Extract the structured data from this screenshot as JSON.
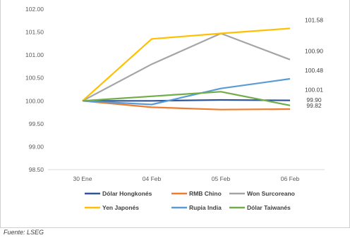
{
  "chart_data": {
    "type": "line",
    "categories": [
      "30 Ene",
      "04 Feb",
      "05 Feb",
      "06 Feb"
    ],
    "ylim": [
      98.5,
      102.0
    ],
    "yticks": [
      "98.50",
      "99.00",
      "99.50",
      "100.00",
      "100.50",
      "101.00",
      "101.50",
      "102.00"
    ],
    "series": [
      {
        "name": "Dólar Hongkonés",
        "color": "#2e5597",
        "values": [
          100.0,
          100.0,
          100.02,
          100.01
        ]
      },
      {
        "name": "RMB Chino",
        "color": "#ed7d31",
        "values": [
          100.0,
          99.86,
          99.81,
          99.82
        ]
      },
      {
        "name": "Won Surcoreano",
        "color": "#a5a5a5",
        "values": [
          100.0,
          100.8,
          101.47,
          100.9
        ]
      },
      {
        "name": "Yen Japonés",
        "color": "#ffc000",
        "values": [
          100.0,
          101.35,
          101.47,
          101.58
        ]
      },
      {
        "name": "Rupia India",
        "color": "#5b9bd5",
        "values": [
          100.0,
          99.92,
          100.27,
          100.48
        ]
      },
      {
        "name": "Dólar Taiwanés",
        "color": "#70ad47",
        "values": [
          100.0,
          100.1,
          100.2,
          99.9
        ]
      }
    ],
    "end_labels": [
      "100.01",
      "99.82",
      "100.90",
      "101.58",
      "100.48",
      "99.90"
    ],
    "grid": false,
    "legend_position": "bottom"
  },
  "source": "Fuente: LSEG"
}
